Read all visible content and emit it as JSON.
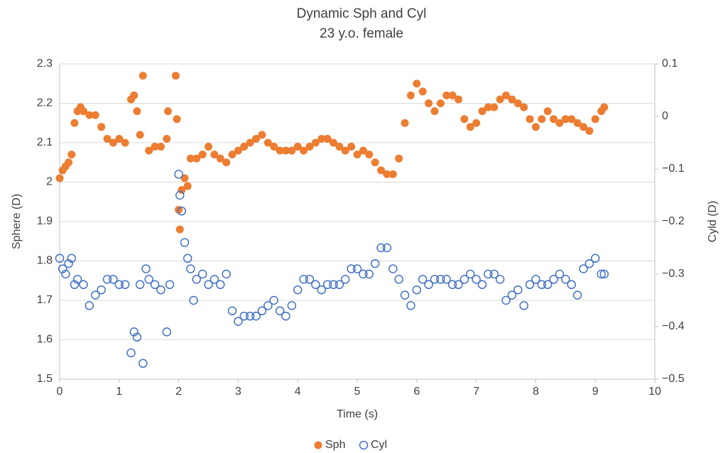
{
  "chart_data": {
    "type": "scatter",
    "title": "Dynamic Sph and Cyl",
    "subtitle": "23 y.o. female",
    "x_label": "Time (s)",
    "y_label": "Sphere (D)",
    "y2_label": "Cyld (D)",
    "xlim": [
      0,
      10
    ],
    "xticks": [
      0,
      1,
      2,
      3,
      4,
      5,
      6,
      7,
      8,
      9,
      10
    ],
    "ylim": [
      1.5,
      2.3
    ],
    "yticks": [
      1.5,
      1.6,
      1.7,
      1.8,
      1.9,
      2,
      2.1,
      2.2,
      2.3
    ],
    "y2lim": [
      -0.5,
      0.1
    ],
    "y2ticks": [
      {
        "value": -0.5,
        "label": "−0.5"
      },
      {
        "value": -0.4,
        "label": "−0.4"
      },
      {
        "value": -0.3,
        "label": "−0.3"
      },
      {
        "value": -0.2,
        "label": "−0.2"
      },
      {
        "value": -0.1,
        "label": "−0.1"
      },
      0,
      0.1
    ],
    "grid": true,
    "legend": "bottom",
    "series": [
      {
        "name": "Sph",
        "color": "#ED7D31",
        "marker": "filled",
        "axis": "y",
        "x": [
          0,
          0.05,
          0.1,
          0.15,
          0.2,
          0.25,
          0.3,
          0.35,
          0.4,
          0.5,
          0.6,
          0.7,
          0.8,
          0.9,
          1.0,
          1.1,
          1.2,
          1.25,
          1.3,
          1.35,
          1.4,
          1.5,
          1.6,
          1.7,
          1.8,
          1.82,
          1.95,
          1.97,
          2.0,
          2.02,
          2.05,
          2.1,
          2.15,
          2.2,
          2.3,
          2.4,
          2.5,
          2.6,
          2.7,
          2.8,
          2.9,
          3.0,
          3.1,
          3.2,
          3.3,
          3.4,
          3.5,
          3.6,
          3.7,
          3.8,
          3.9,
          4.0,
          4.1,
          4.2,
          4.3,
          4.4,
          4.5,
          4.6,
          4.7,
          4.8,
          4.9,
          5.0,
          5.1,
          5.2,
          5.3,
          5.4,
          5.5,
          5.6,
          5.7,
          5.8,
          5.9,
          6.0,
          6.1,
          6.2,
          6.3,
          6.4,
          6.5,
          6.6,
          6.7,
          6.8,
          6.9,
          7.0,
          7.1,
          7.2,
          7.3,
          7.4,
          7.5,
          7.6,
          7.7,
          7.8,
          7.9,
          8.0,
          8.1,
          8.2,
          8.3,
          8.4,
          8.5,
          8.6,
          8.7,
          8.8,
          8.9,
          9.0,
          9.1,
          9.15
        ],
        "values": [
          2.01,
          2.03,
          2.04,
          2.05,
          2.07,
          2.15,
          2.18,
          2.19,
          2.18,
          2.17,
          2.17,
          2.14,
          2.11,
          2.1,
          2.11,
          2.1,
          2.21,
          2.22,
          2.18,
          2.12,
          2.27,
          2.08,
          2.09,
          2.09,
          2.11,
          2.18,
          2.27,
          2.16,
          1.93,
          1.88,
          1.98,
          2.01,
          1.99,
          2.06,
          2.06,
          2.07,
          2.09,
          2.07,
          2.06,
          2.05,
          2.07,
          2.08,
          2.09,
          2.1,
          2.11,
          2.12,
          2.1,
          2.09,
          2.08,
          2.08,
          2.08,
          2.09,
          2.08,
          2.09,
          2.1,
          2.11,
          2.11,
          2.1,
          2.09,
          2.08,
          2.09,
          2.07,
          2.08,
          2.07,
          2.05,
          2.03,
          2.02,
          2.02,
          2.06,
          2.15,
          2.22,
          2.25,
          2.23,
          2.2,
          2.18,
          2.2,
          2.22,
          2.22,
          2.21,
          2.16,
          2.14,
          2.15,
          2.18,
          2.19,
          2.19,
          2.21,
          2.22,
          2.21,
          2.2,
          2.19,
          2.16,
          2.14,
          2.16,
          2.18,
          2.16,
          2.15,
          2.16,
          2.16,
          2.15,
          2.14,
          2.13,
          2.16,
          2.18,
          2.19
        ]
      },
      {
        "name": "Cyl",
        "color": "#4472C4",
        "marker": "hollow",
        "axis": "y2",
        "x": [
          0,
          0.05,
          0.1,
          0.15,
          0.2,
          0.25,
          0.3,
          0.4,
          0.5,
          0.6,
          0.7,
          0.8,
          0.9,
          1.0,
          1.1,
          1.2,
          1.25,
          1.3,
          1.35,
          1.4,
          1.45,
          1.5,
          1.6,
          1.7,
          1.8,
          1.85,
          2.0,
          2.02,
          2.05,
          2.1,
          2.15,
          2.2,
          2.25,
          2.3,
          2.4,
          2.5,
          2.6,
          2.7,
          2.8,
          2.9,
          3.0,
          3.1,
          3.2,
          3.3,
          3.4,
          3.5,
          3.6,
          3.7,
          3.8,
          3.9,
          4.0,
          4.1,
          4.2,
          4.3,
          4.4,
          4.5,
          4.6,
          4.7,
          4.8,
          4.9,
          5.0,
          5.1,
          5.2,
          5.3,
          5.4,
          5.5,
          5.6,
          5.7,
          5.8,
          5.9,
          6.0,
          6.1,
          6.2,
          6.3,
          6.4,
          6.5,
          6.6,
          6.7,
          6.8,
          6.9,
          7.0,
          7.1,
          7.2,
          7.3,
          7.4,
          7.5,
          7.6,
          7.7,
          7.8,
          7.9,
          8.0,
          8.1,
          8.2,
          8.3,
          8.4,
          8.5,
          8.6,
          8.7,
          8.8,
          8.9,
          9.0,
          9.1,
          9.15
        ],
        "values": [
          -0.27,
          -0.29,
          -0.3,
          -0.28,
          -0.27,
          -0.32,
          -0.31,
          -0.32,
          -0.36,
          -0.34,
          -0.33,
          -0.31,
          -0.31,
          -0.32,
          -0.32,
          -0.45,
          -0.41,
          -0.42,
          -0.32,
          -0.47,
          -0.29,
          -0.31,
          -0.32,
          -0.33,
          -0.41,
          -0.32,
          -0.11,
          -0.15,
          -0.18,
          -0.24,
          -0.27,
          -0.29,
          -0.35,
          -0.31,
          -0.3,
          -0.32,
          -0.31,
          -0.32,
          -0.3,
          -0.37,
          -0.39,
          -0.38,
          -0.38,
          -0.38,
          -0.37,
          -0.36,
          -0.35,
          -0.37,
          -0.38,
          -0.36,
          -0.33,
          -0.31,
          -0.31,
          -0.32,
          -0.33,
          -0.32,
          -0.32,
          -0.32,
          -0.31,
          -0.29,
          -0.29,
          -0.3,
          -0.3,
          -0.28,
          -0.25,
          -0.25,
          -0.29,
          -0.31,
          -0.34,
          -0.36,
          -0.33,
          -0.31,
          -0.32,
          -0.31,
          -0.31,
          -0.31,
          -0.32,
          -0.32,
          -0.31,
          -0.3,
          -0.31,
          -0.32,
          -0.3,
          -0.3,
          -0.31,
          -0.35,
          -0.34,
          -0.33,
          -0.36,
          -0.32,
          -0.31,
          -0.32,
          -0.32,
          -0.31,
          -0.3,
          -0.31,
          -0.32,
          -0.34,
          -0.29,
          -0.28,
          -0.27,
          -0.3,
          -0.3
        ]
      }
    ]
  }
}
